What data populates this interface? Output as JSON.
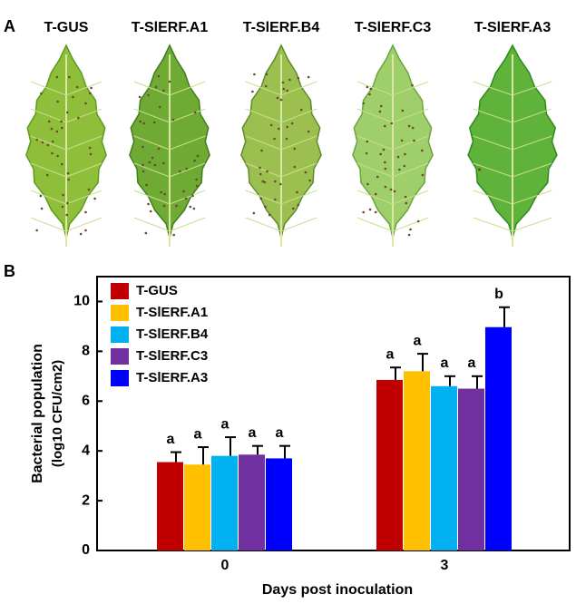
{
  "panel_a": {
    "label": "A",
    "leaves": [
      "T-GUS",
      "T-SlERF.A1",
      "T-SlERF.B4",
      "T-SlERF.C3",
      "T-SlERF.A3"
    ]
  },
  "panel_b": {
    "label": "B"
  },
  "chart_data": {
    "type": "bar",
    "x_label": "Days post inoculation",
    "y_label": [
      "Bacterial population",
      "(log10 CFU/cm2)"
    ],
    "categories": [
      "0",
      "3"
    ],
    "ylim": [
      0,
      11
    ],
    "yticks": [
      0,
      2,
      4,
      6,
      8,
      10
    ],
    "legend": "top-left",
    "series": [
      {
        "name": "T-GUS",
        "color": "#c00000",
        "values": [
          3.55,
          6.85
        ],
        "errors": [
          0.4,
          0.5
        ],
        "letters": [
          "a",
          "a"
        ]
      },
      {
        "name": "T-SlERF.A1",
        "color": "#ffc000",
        "values": [
          3.45,
          7.2
        ],
        "errors": [
          0.7,
          0.7
        ],
        "letters": [
          "a",
          "a"
        ]
      },
      {
        "name": "T-SlERF.B4",
        "color": "#00b0f0",
        "values": [
          3.8,
          6.6
        ],
        "errors": [
          0.75,
          0.4
        ],
        "letters": [
          "a",
          "a"
        ]
      },
      {
        "name": "T-SlERF.C3",
        "color": "#7030a0",
        "values": [
          3.85,
          6.5
        ],
        "errors": [
          0.35,
          0.5
        ],
        "letters": [
          "a",
          "a"
        ]
      },
      {
        "name": "T-SlERF.A3",
        "color": "#0000ff",
        "values": [
          3.7,
          8.97
        ],
        "errors": [
          0.5,
          0.8
        ],
        "letters": [
          "a",
          "b"
        ]
      }
    ]
  }
}
